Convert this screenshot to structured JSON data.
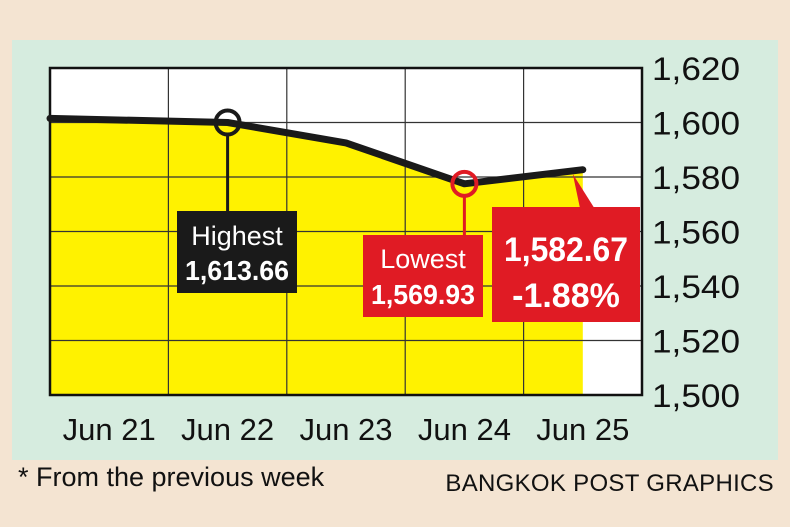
{
  "colors": {
    "background": "#f4e4d2",
    "panel": "#d6ecdf",
    "fill": "#fff200",
    "line": "#1a1a1a",
    "highlight_red": "#e01b24",
    "label_dark": "#1a1a1a"
  },
  "chart_data": {
    "type": "line",
    "categories": [
      "Jun 21",
      "Jun 22",
      "Jun 23",
      "Jun 24",
      "Jun 25"
    ],
    "values": [
      1601.5,
      1600.0,
      1592.5,
      1577.5,
      1582.67
    ],
    "ylim": [
      1500,
      1620
    ],
    "yticks": [
      1620,
      1600,
      1580,
      1560,
      1540,
      1520,
      1500
    ],
    "ytick_labels": [
      "1,620",
      "1,600",
      "1,580",
      "1,560",
      "1,540",
      "1,520",
      "1,500"
    ],
    "grid": true,
    "fill_under": true,
    "annotations": {
      "highest": {
        "label": "Highest",
        "value_text": "1,613.66",
        "marker_day": "Jun 22",
        "marker_value": 1600.0
      },
      "lowest": {
        "label": "Lowest",
        "value_text": "1,569.93",
        "marker_day": "Jun 24",
        "marker_value": 1577.5
      },
      "close": {
        "value_text": "1,582.67",
        "change_text": "-1.88%",
        "day": "Jun 25"
      }
    }
  },
  "footnote": "* From the previous week",
  "credit": "BANGKOK POST GRAPHICS"
}
